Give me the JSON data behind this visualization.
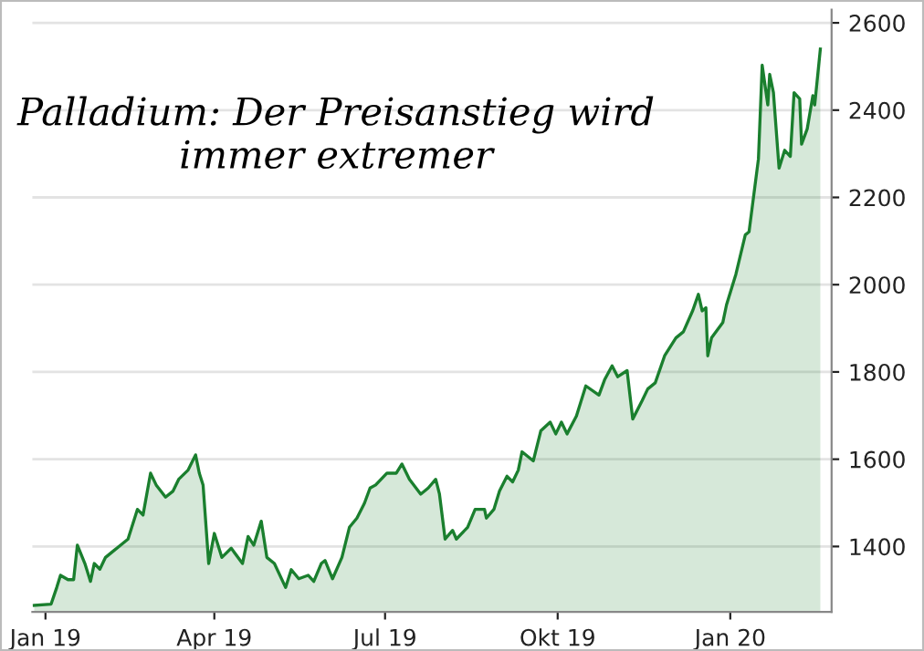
{
  "chart_data": {
    "type": "area",
    "annotations": [
      "Palladium: Der Preisanstieg wird immer extremer"
    ],
    "x": [
      "2018-12-26",
      "2019-01-04",
      "2019-01-07",
      "2019-01-09",
      "2019-01-13",
      "2019-01-16",
      "2019-01-18",
      "2019-01-22",
      "2019-01-25",
      "2019-01-27",
      "2019-01-30",
      "2019-02-02",
      "2019-02-06",
      "2019-02-10",
      "2019-02-14",
      "2019-02-19",
      "2019-02-22",
      "2019-02-26",
      "2019-03-01",
      "2019-03-06",
      "2019-03-10",
      "2019-03-13",
      "2019-03-18",
      "2019-03-22",
      "2019-03-24",
      "2019-03-26",
      "2019-03-29",
      "2019-04-01",
      "2019-04-05",
      "2019-04-10",
      "2019-04-16",
      "2019-04-19",
      "2019-04-22",
      "2019-04-26",
      "2019-04-29",
      "2019-05-03",
      "2019-05-09",
      "2019-05-12",
      "2019-05-16",
      "2019-05-21",
      "2019-05-24",
      "2019-05-28",
      "2019-05-30",
      "2019-06-03",
      "2019-06-08",
      "2019-06-12",
      "2019-06-16",
      "2019-06-20",
      "2019-06-23",
      "2019-06-26",
      "2019-07-02",
      "2019-07-07",
      "2019-07-10",
      "2019-07-14",
      "2019-07-20",
      "2019-07-24",
      "2019-07-28",
      "2019-07-30",
      "2019-08-02",
      "2019-08-06",
      "2019-08-08",
      "2019-08-14",
      "2019-08-18",
      "2019-08-23",
      "2019-08-24",
      "2019-08-28",
      "2019-08-31",
      "2019-09-04",
      "2019-09-07",
      "2019-09-10",
      "2019-09-12",
      "2019-09-18",
      "2019-09-22",
      "2019-09-27",
      "2019-09-30",
      "2019-10-03",
      "2019-10-06",
      "2019-10-11",
      "2019-10-16",
      "2019-10-23",
      "2019-10-26",
      "2019-10-30",
      "2019-11-02",
      "2019-11-07",
      "2019-11-10",
      "2019-11-15",
      "2019-11-18",
      "2019-11-22",
      "2019-11-27",
      "2019-12-03",
      "2019-12-07",
      "2019-12-12",
      "2019-12-15",
      "2019-12-17",
      "2019-12-19",
      "2019-12-20",
      "2019-12-22",
      "2019-12-28",
      "2019-12-30",
      "2020-01-04",
      "2020-01-09",
      "2020-01-11",
      "2020-01-16",
      "2020-01-18",
      "2020-01-21",
      "2020-01-22",
      "2020-01-24",
      "2020-01-27",
      "2020-01-30",
      "2020-02-02",
      "2020-02-04",
      "2020-02-07",
      "2020-02-08",
      "2020-02-11",
      "2020-02-14",
      "2020-02-15",
      "2020-02-18"
    ],
    "series": [
      {
        "color": "#1a7f2e",
        "values": [
          1265,
          1268,
          1306,
          1334,
          1324,
          1324,
          1403,
          1361,
          1320,
          1361,
          1348,
          1375,
          1389,
          1403,
          1417,
          1485,
          1472,
          1568,
          1541,
          1513,
          1527,
          1554,
          1575,
          1610,
          1568,
          1541,
          1361,
          1430,
          1375,
          1396,
          1361,
          1423,
          1403,
          1458,
          1375,
          1361,
          1306,
          1347,
          1326,
          1334,
          1320,
          1361,
          1368,
          1326,
          1375,
          1444,
          1465,
          1499,
          1534,
          1541,
          1568,
          1568,
          1589,
          1554,
          1520,
          1534,
          1554,
          1520,
          1417,
          1437,
          1417,
          1444,
          1485,
          1485,
          1465,
          1485,
          1527,
          1561,
          1548,
          1575,
          1617,
          1596,
          1665,
          1685,
          1658,
          1685,
          1658,
          1699,
          1768,
          1747,
          1782,
          1814,
          1789,
          1803,
          1692,
          1734,
          1761,
          1775,
          1837,
          1878,
          1892,
          1941,
          1978,
          1940,
          1947,
          1837,
          1878,
          1913,
          1954,
          2024,
          2114,
          2121,
          2288,
          2503,
          2412,
          2482,
          2440,
          2267,
          2308,
          2294,
          2440,
          2426,
          2322,
          2357,
          2433,
          2412,
          2540
        ]
      }
    ],
    "xlim": [
      "2018-12-25",
      "2020-02-24"
    ],
    "xticks": [
      {
        "value": "2019-01-01",
        "label": "Jan 19"
      },
      {
        "value": "2019-04-01",
        "label": "Apr 19"
      },
      {
        "value": "2019-07-01",
        "label": "Jul 19"
      },
      {
        "value": "2019-10-01",
        "label": "Okt 19"
      },
      {
        "value": "2020-01-01",
        "label": "Jan 20"
      }
    ],
    "ylim": [
      1250,
      2630
    ],
    "yticks": [
      1400,
      1600,
      1800,
      2000,
      2200,
      2400,
      2600
    ],
    "grid": "y"
  }
}
